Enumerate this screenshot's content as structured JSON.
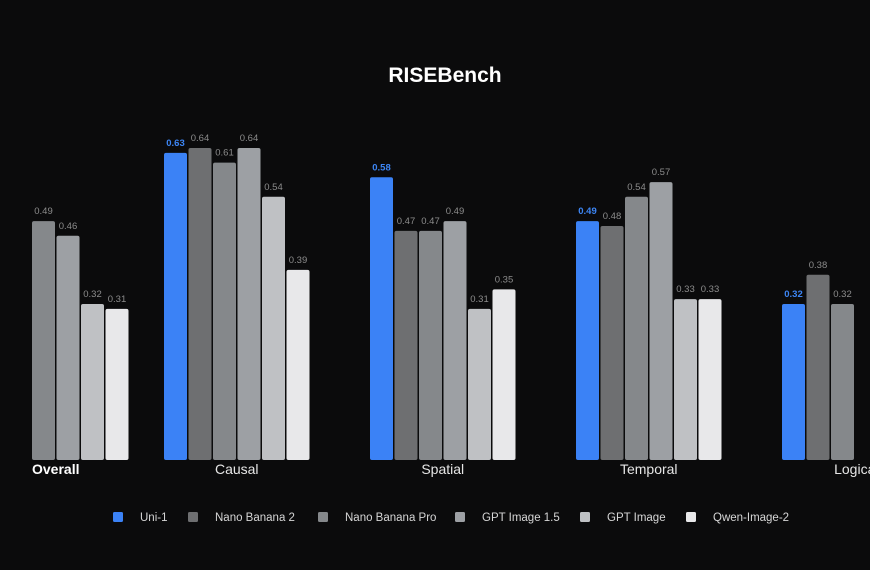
{
  "chart_data": {
    "type": "bar",
    "title": "RISEBench",
    "categories": [
      "Overall",
      "Causal",
      "Spatial",
      "Temporal",
      "Logical"
    ],
    "series": [
      {
        "name": "Uni-1",
        "color": "#3b82f6",
        "values": [
          null,
          0.63,
          0.58,
          0.49,
          0.32
        ]
      },
      {
        "name": "Nano Banana 2",
        "color": "#6e6f71",
        "values": [
          null,
          0.64,
          0.47,
          0.48,
          0.38
        ]
      },
      {
        "name": "Nano Banana Pro",
        "color": "#85888b",
        "values": [
          0.49,
          0.61,
          0.47,
          0.54,
          0.32
        ]
      },
      {
        "name": "GPT Image 1.5",
        "color": "#9da0a4",
        "values": [
          0.46,
          0.64,
          0.49,
          0.57,
          null
        ]
      },
      {
        "name": "GPT Image",
        "color": "#bfc1c4",
        "values": [
          0.32,
          0.54,
          0.31,
          0.33,
          null
        ]
      },
      {
        "name": "Qwen-Image-2",
        "color": "#e8e8ea",
        "values": [
          0.31,
          0.39,
          0.35,
          0.33,
          null
        ]
      }
    ],
    "ylim": [
      0,
      0.64
    ],
    "xlabel": "",
    "ylabel": "",
    "grid": false,
    "legend": "bottom",
    "value_label_precision": 2,
    "highlight_series": "Uni-1",
    "visible_category_labels": [
      "Overall",
      "Causal",
      "Spatial",
      "Temporal",
      "Logica"
    ]
  }
}
